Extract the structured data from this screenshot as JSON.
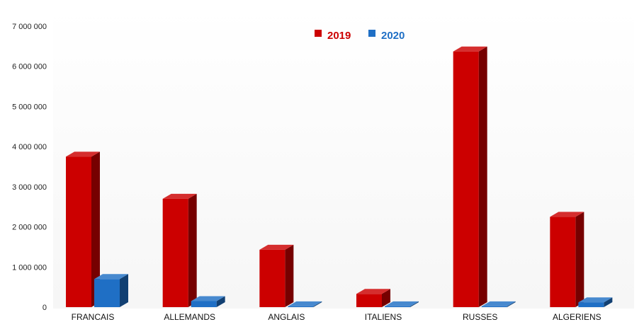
{
  "chart_data": {
    "type": "bar",
    "categories": [
      "FRANCAIS",
      "ALLEMANDS",
      "ANGLAIS",
      "ITALIENS",
      "RUSSES",
      "ALGERIENS"
    ],
    "series": [
      {
        "name": "2019",
        "values": [
          3750000,
          2700000,
          1430000,
          330000,
          6370000,
          2250000
        ],
        "color": "#cc0000"
      },
      {
        "name": "2020",
        "values": [
          700000,
          150000,
          20000,
          20000,
          20000,
          120000
        ],
        "color": "#1f6fc5"
      }
    ],
    "y_tick_labels": [
      "0",
      "1 000 000",
      "2 000 000",
      "3 000 000",
      "4 000 000",
      "5 000 000",
      "6 000 000",
      "7 000 000"
    ],
    "ylim": [
      0,
      7000000
    ],
    "grid": false,
    "legend_position": "top-center",
    "title": "",
    "xlabel": "",
    "ylabel": ""
  }
}
